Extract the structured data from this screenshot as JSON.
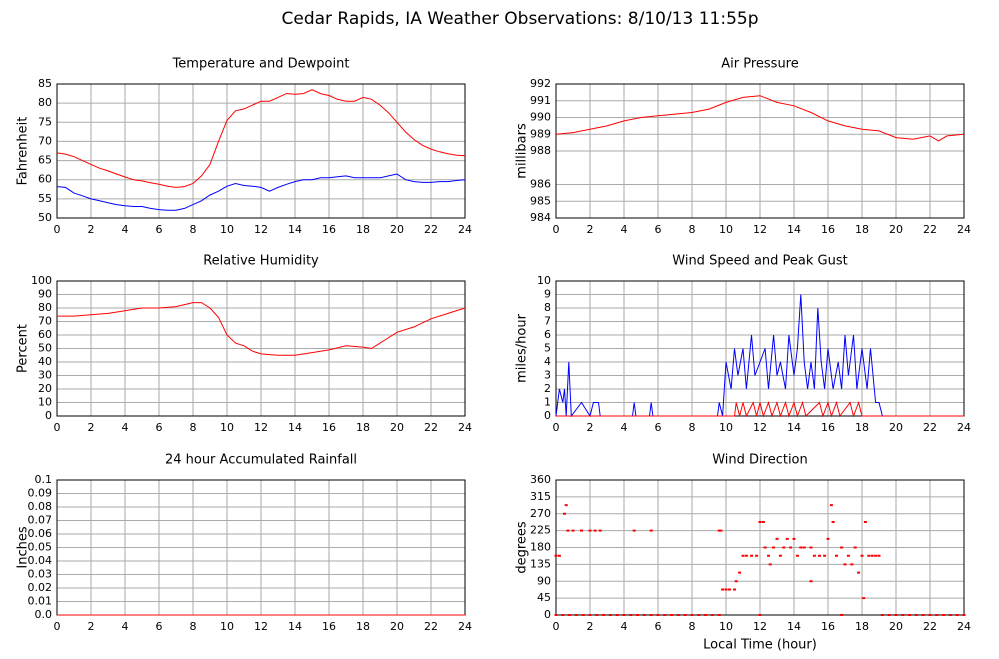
{
  "title": "Cedar Rapids, IA Weather Observations: 8/10/13 11:55p",
  "chart_data": [
    {
      "type": "line",
      "title": "Temperature and Dewpoint",
      "ylabel": "Fahrenheit",
      "xlim": [
        0,
        24
      ],
      "xticks": [
        0,
        2,
        4,
        6,
        8,
        10,
        12,
        14,
        16,
        18,
        20,
        22,
        24
      ],
      "ylim": [
        50,
        85
      ],
      "yticks": [
        50,
        55,
        60,
        65,
        70,
        75,
        80,
        85
      ],
      "grid": true,
      "series": [
        {
          "name": "Temperature",
          "color": "#ff0000",
          "x": [
            0,
            0.5,
            1,
            1.5,
            2,
            2.5,
            3,
            3.5,
            4,
            4.5,
            5,
            5.5,
            6,
            6.5,
            7,
            7.5,
            8,
            8.5,
            9,
            9.5,
            10,
            10.5,
            11,
            11.5,
            12,
            12.5,
            13,
            13.5,
            14,
            14.5,
            15,
            15.5,
            16,
            16.5,
            17,
            17.5,
            18,
            18.5,
            19,
            19.5,
            20,
            20.5,
            21,
            21.5,
            22,
            22.5,
            23,
            23.5,
            24
          ],
          "values": [
            67,
            66.7,
            66,
            65,
            64,
            63,
            62.3,
            61.5,
            60.7,
            60,
            59.7,
            59.2,
            58.8,
            58.3,
            58,
            58.2,
            59,
            61,
            64,
            70,
            75.5,
            78,
            78.5,
            79.5,
            80.5,
            80.5,
            81.5,
            82.5,
            82.3,
            82.5,
            83.5,
            82.5,
            82,
            81,
            80.5,
            80.5,
            81.5,
            81,
            79.5,
            77.5,
            75,
            72.5,
            70.5,
            69,
            68,
            67.3,
            66.8,
            66.4,
            66.3
          ]
        },
        {
          "name": "Dewpoint",
          "color": "#0000ff",
          "x": [
            0,
            0.5,
            1,
            1.5,
            2,
            2.5,
            3,
            3.5,
            4,
            4.5,
            5,
            5.5,
            6,
            6.5,
            7,
            7.5,
            8,
            8.5,
            9,
            9.5,
            10,
            10.5,
            11,
            11.5,
            12,
            12.5,
            13,
            13.5,
            14,
            14.5,
            15,
            15.5,
            16,
            16.5,
            17,
            17.5,
            18,
            18.5,
            19,
            19.5,
            20,
            20.5,
            21,
            21.5,
            22,
            22.5,
            23,
            23.5,
            24
          ],
          "values": [
            58.2,
            58,
            56.5,
            55.8,
            55,
            54.5,
            54,
            53.5,
            53.2,
            53,
            53,
            52.5,
            52.2,
            52,
            52,
            52.5,
            53.5,
            54.5,
            56,
            57,
            58.3,
            59,
            58.5,
            58.3,
            58,
            57,
            58,
            58.8,
            59.5,
            60,
            60,
            60.5,
            60.5,
            60.8,
            61,
            60.5,
            60.5,
            60.5,
            60.5,
            61,
            61.5,
            60,
            59.5,
            59.3,
            59.3,
            59.5,
            59.5,
            59.8,
            60
          ]
        }
      ]
    },
    {
      "type": "line",
      "title": "Air Pressure",
      "ylabel": "millibars",
      "xlim": [
        0,
        24
      ],
      "xticks": [
        0,
        2,
        4,
        6,
        8,
        10,
        12,
        14,
        16,
        18,
        20,
        22,
        24
      ],
      "ylim": [
        984,
        992
      ],
      "yticks": [
        984,
        985,
        986,
        988,
        989,
        990,
        991,
        992
      ],
      "grid": true,
      "series": [
        {
          "name": "Pressure",
          "color": "#ff0000",
          "x": [
            0,
            1,
            2,
            3,
            4,
            5,
            6,
            7,
            8,
            9,
            10,
            11,
            12,
            13,
            14,
            15,
            16,
            17,
            18,
            19,
            20,
            21,
            22,
            22.5,
            23,
            24
          ],
          "values": [
            989,
            989.1,
            989.3,
            989.5,
            989.8,
            990,
            990.1,
            990.2,
            990.3,
            990.5,
            990.9,
            991.2,
            991.3,
            990.9,
            990.7,
            990.3,
            989.8,
            989.5,
            989.3,
            989.2,
            988.8,
            988.7,
            988.9,
            988.6,
            988.9,
            989
          ]
        }
      ]
    },
    {
      "type": "line",
      "title": "Relative Humidity",
      "ylabel": "Percent",
      "xlim": [
        0,
        24
      ],
      "xticks": [
        0,
        2,
        4,
        6,
        8,
        10,
        12,
        14,
        16,
        18,
        20,
        22,
        24
      ],
      "ylim": [
        0,
        100
      ],
      "yticks": [
        0,
        10,
        20,
        30,
        40,
        50,
        60,
        70,
        80,
        90,
        100
      ],
      "grid": true,
      "series": [
        {
          "name": "Relative Humidity",
          "color": "#ff0000",
          "x": [
            0,
            1,
            2,
            3,
            4,
            5,
            6,
            7,
            8,
            8.5,
            9,
            9.5,
            10,
            10.5,
            11,
            11.5,
            12,
            13,
            14,
            15,
            16,
            17,
            18,
            18.5,
            19,
            20,
            21,
            22,
            23,
            24
          ],
          "values": [
            74,
            74,
            75,
            76,
            78,
            80,
            80,
            81,
            84,
            84,
            80,
            73,
            60,
            54,
            52,
            48,
            46,
            45,
            45,
            47,
            49,
            52,
            51,
            50,
            54,
            62,
            66,
            72,
            76,
            80
          ]
        }
      ]
    },
    {
      "type": "line",
      "title": "Wind Speed and Peak Gust",
      "ylabel": "miles/hour",
      "xlim": [
        0,
        24
      ],
      "xticks": [
        0,
        2,
        4,
        6,
        8,
        10,
        12,
        14,
        16,
        18,
        20,
        22,
        24
      ],
      "ylim": [
        0,
        10
      ],
      "yticks": [
        0,
        1,
        2,
        3,
        4,
        5,
        6,
        7,
        8,
        9,
        10
      ],
      "grid": true,
      "series": [
        {
          "name": "Wind Speed",
          "color": "#0000ff",
          "x": [
            0,
            0.2,
            0.4,
            0.5,
            0.6,
            0.75,
            0.9,
            1.5,
            2,
            2.2,
            2.5,
            2.6,
            4.5,
            4.6,
            4.7,
            5.5,
            5.6,
            5.7,
            9.5,
            9.6,
            9.8,
            10,
            10.3,
            10.5,
            10.7,
            11,
            11.2,
            11.5,
            11.7,
            12,
            12.3,
            12.5,
            12.8,
            13,
            13.2,
            13.5,
            13.7,
            14,
            14.2,
            14.4,
            14.6,
            14.8,
            15,
            15.2,
            15.4,
            15.6,
            15.8,
            16,
            16.3,
            16.6,
            16.8,
            17,
            17.2,
            17.5,
            17.7,
            18,
            18.3,
            18.5,
            18.8,
            19,
            19.2,
            24
          ],
          "values": [
            0,
            2,
            1,
            2,
            0,
            4,
            0,
            1,
            0,
            1,
            1,
            0,
            0,
            1,
            0,
            0,
            1,
            0,
            0,
            1,
            0,
            4,
            2,
            5,
            3,
            5,
            2,
            6,
            3,
            4,
            5,
            2,
            6,
            3,
            4,
            2,
            6,
            3,
            5,
            9,
            4,
            2,
            4,
            2,
            8,
            4,
            2,
            5,
            2,
            4,
            2,
            6,
            3,
            6,
            2,
            5,
            2,
            5,
            1,
            1,
            0,
            0
          ]
        },
        {
          "name": "Peak Gust",
          "color": "#ff0000",
          "x": [
            0,
            10.5,
            10.6,
            10.8,
            11,
            11.2,
            11.6,
            11.8,
            12,
            12.2,
            12.5,
            12.7,
            13,
            13.2,
            13.5,
            13.7,
            14,
            14.2,
            14.5,
            14.7,
            15.5,
            15.7,
            16,
            16.2,
            16.5,
            16.7,
            17.3,
            17.5,
            17.8,
            18,
            24
          ],
          "values": [
            0,
            0,
            1,
            0,
            1,
            0,
            1,
            0,
            1,
            0,
            1,
            0,
            1,
            0,
            1,
            0,
            1,
            0,
            1,
            0,
            1,
            0,
            1,
            0,
            1,
            0,
            1,
            0,
            1,
            0,
            0
          ]
        }
      ]
    },
    {
      "type": "line",
      "title": "24 hour Accumulated Rainfall",
      "ylabel": "Inches",
      "xlim": [
        0,
        24
      ],
      "xticks": [
        0,
        2,
        4,
        6,
        8,
        10,
        12,
        14,
        16,
        18,
        20,
        22,
        24
      ],
      "ylim": [
        0,
        0.1
      ],
      "yticks": [
        {
          "value": 0,
          "label": "0.0"
        },
        0.01,
        0.02,
        0.03,
        0.04,
        0.05,
        0.06,
        0.07,
        0.08,
        0.09,
        0.1
      ],
      "grid": true,
      "series": [
        {
          "name": "Rainfall",
          "color": "#ff0000",
          "x": [
            0,
            24
          ],
          "values": [
            0,
            0
          ]
        }
      ]
    },
    {
      "type": "scatter",
      "title": "Wind Direction",
      "ylabel": "degrees",
      "xlabel": "Local Time (hour)",
      "xlim": [
        0,
        24
      ],
      "xticks": [
        0,
        2,
        4,
        6,
        8,
        10,
        12,
        14,
        16,
        18,
        20,
        22,
        24
      ],
      "ylim": [
        0,
        360
      ],
      "yticks": [
        0,
        45,
        90,
        135,
        180,
        225,
        270,
        315,
        360
      ],
      "grid": true,
      "series": [
        {
          "name": "Wind Direction",
          "color": "#ff0000",
          "x": [
            0,
            0.2,
            0.5,
            0.6,
            0.7,
            1,
            1.5,
            2,
            2.3,
            2.6,
            4.6,
            5.6,
            9.6,
            9.7,
            9.8,
            10,
            10.2,
            10.5,
            10.6,
            10.8,
            11,
            11.2,
            11.5,
            11.8,
            12,
            12.2,
            12.3,
            12.5,
            12.6,
            12.8,
            13,
            13.2,
            13.4,
            13.6,
            13.8,
            14,
            14.2,
            14.4,
            14.6,
            15,
            15,
            15.2,
            15.5,
            15.8,
            16,
            16.2,
            16.3,
            16.5,
            16.8,
            17,
            17.2,
            17.4,
            17.6,
            17.8,
            18,
            18.1,
            18.2,
            18.4,
            18.6,
            18.8,
            19,
            0,
            0.4,
            0.8,
            1.2,
            1.6,
            2,
            2.4,
            2.8,
            3.2,
            3.6,
            4,
            4.4,
            4.8,
            5.2,
            5.6,
            6,
            6.4,
            6.8,
            7.2,
            7.6,
            8,
            8.4,
            8.8,
            9.2,
            9.6,
            12,
            16.8,
            19.2,
            19.6,
            20,
            20.4,
            20.8,
            21.2,
            21.6,
            22,
            22.4,
            22.8,
            23.2,
            23.6,
            24
          ],
          "values": [
            158,
            158,
            270,
            293,
            225,
            225,
            225,
            225,
            225,
            225,
            225,
            225,
            225,
            225,
            68,
            68,
            68,
            68,
            90,
            113,
            158,
            158,
            158,
            158,
            248,
            248,
            180,
            158,
            135,
            180,
            203,
            158,
            180,
            203,
            180,
            203,
            158,
            180,
            180,
            180,
            90,
            158,
            158,
            158,
            203,
            293,
            248,
            158,
            180,
            135,
            158,
            135,
            180,
            113,
            158,
            45,
            248,
            158,
            158,
            158,
            158,
            0,
            0,
            0,
            0,
            0,
            0,
            0,
            0,
            0,
            0,
            0,
            0,
            0,
            0,
            0,
            0,
            0,
            0,
            0,
            0,
            0,
            0,
            0,
            0,
            0,
            0,
            0,
            0,
            0,
            0,
            0,
            0,
            0,
            0,
            0,
            0,
            0,
            0,
            0,
            0
          ]
        }
      ]
    }
  ]
}
